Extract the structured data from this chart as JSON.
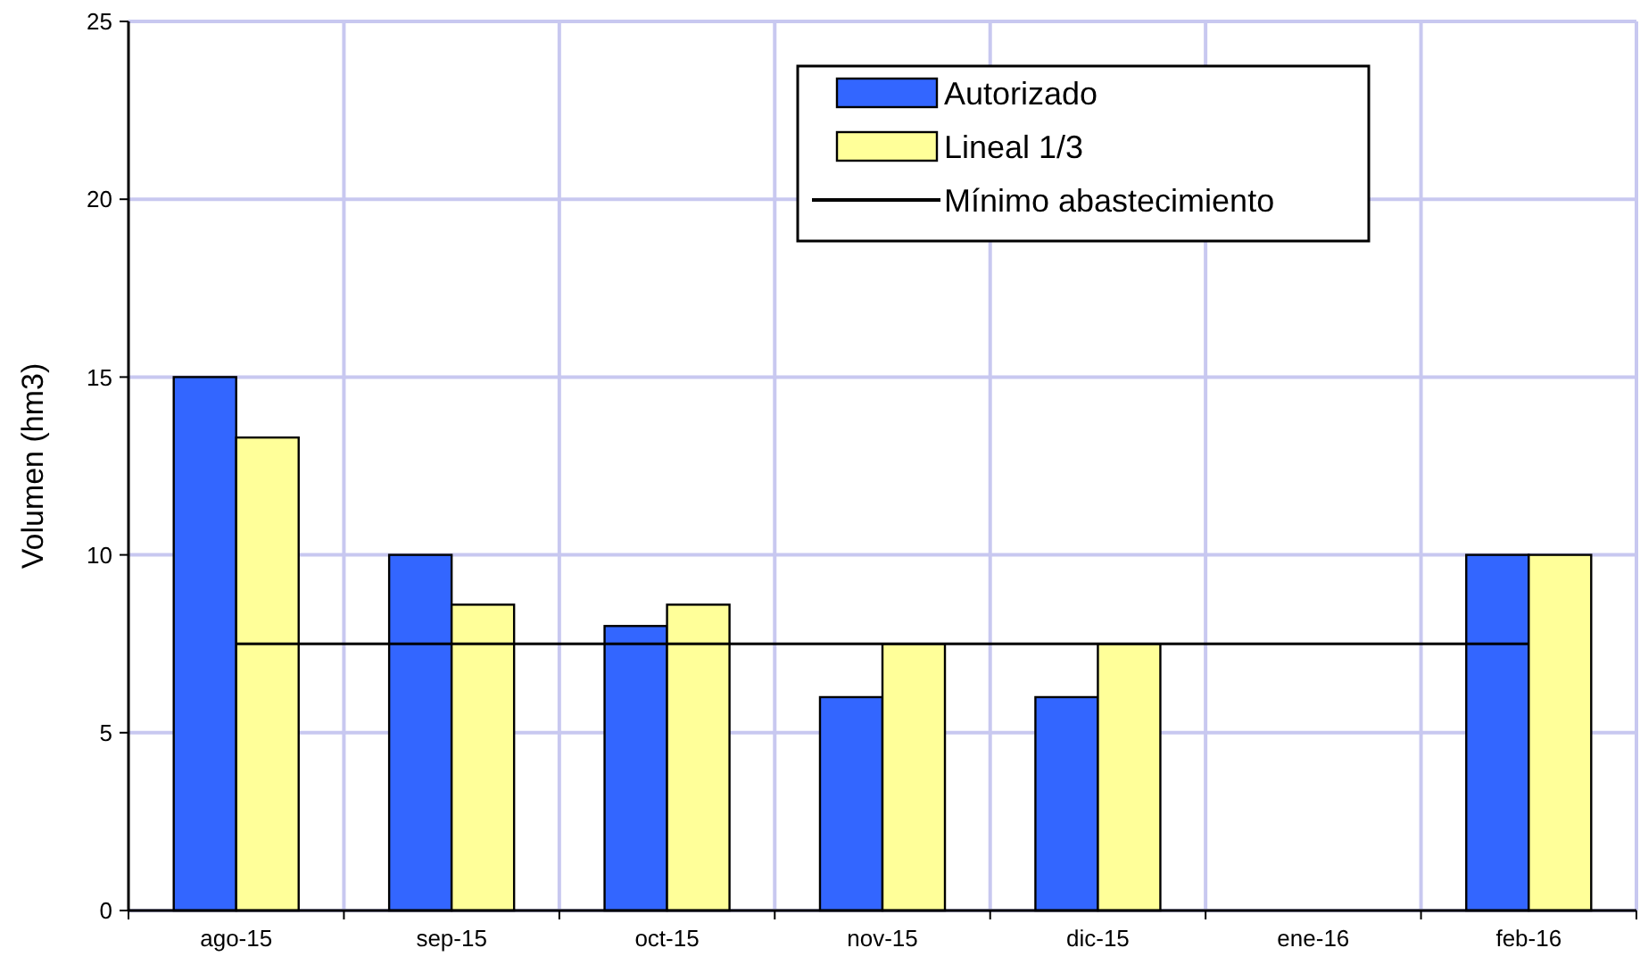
{
  "chart_data": {
    "type": "bar",
    "ylabel": "Volumen (hm3)",
    "categories": [
      "ago-15",
      "sep-15",
      "oct-15",
      "nov-15",
      "dic-15",
      "ene-16",
      "feb-16"
    ],
    "series": [
      {
        "name": "Autorizado",
        "color": "#3366ff",
        "values": [
          15,
          10,
          8,
          6,
          6,
          null,
          10
        ]
      },
      {
        "name": "Lineal 1/3",
        "color": "#ffff99",
        "values": [
          13.3,
          8.6,
          8.6,
          7.5,
          7.5,
          null,
          10
        ]
      },
      {
        "name": "Mínimo abastecimiento",
        "type": "line",
        "color": "#000000",
        "values": [
          7.5,
          7.5,
          7.5,
          7.5,
          7.5,
          7.5,
          7.5
        ]
      }
    ],
    "ylim": [
      0,
      25
    ],
    "yticks": [
      0,
      5,
      10,
      15,
      20,
      25
    ],
    "grid": true,
    "legend": "top right"
  }
}
